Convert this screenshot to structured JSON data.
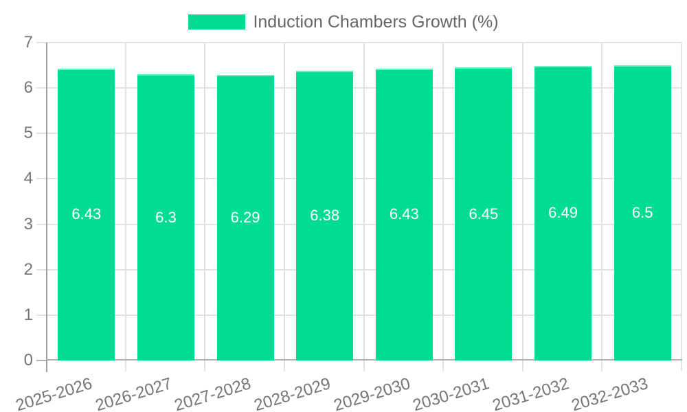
{
  "legend": {
    "label": "Induction Chambers Growth (%)"
  },
  "chart_data": {
    "type": "bar",
    "title": "Induction Chambers Growth (%)",
    "categories": [
      "2025-2026",
      "2026-2027",
      "2027-2028",
      "2028-2029",
      "2029-2030",
      "2030-2031",
      "2031-2032",
      "2032-2033"
    ],
    "series": [
      {
        "name": "Induction Chambers Growth (%)",
        "values": [
          6.43,
          6.3,
          6.29,
          6.38,
          6.43,
          6.45,
          6.49,
          6.5
        ]
      }
    ],
    "value_labels": [
      "6.43",
      "6.3",
      "6.29",
      "6.38",
      "6.43",
      "6.45",
      "6.49",
      "6.5"
    ],
    "xlabel": "",
    "ylabel": "",
    "ylim": [
      0,
      7
    ],
    "yticks": [
      0,
      1,
      2,
      3,
      4,
      5,
      6,
      7
    ],
    "grid": true,
    "legend_position": "top",
    "x_label_rotation_deg": -17,
    "colors": {
      "bar": "#00dc92",
      "bar_top_edge": "rgba(255,255,255,0.45)",
      "bar_value_text": "#ffffff",
      "axis_text": "#757575",
      "legend_text": "#666666",
      "grid": "#e2e2e2",
      "y_axis_line": "#9e9e9e",
      "x_axis_line": "#b0b0b0",
      "background": "#ffffff"
    }
  }
}
